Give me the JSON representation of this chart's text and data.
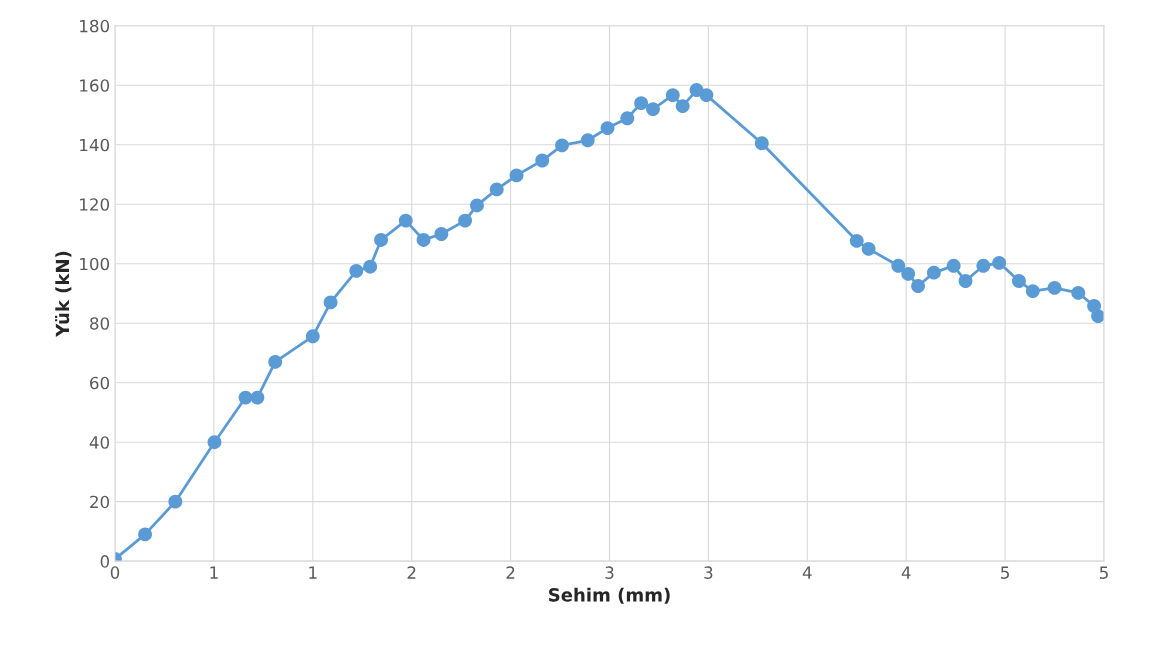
{
  "chart_data": {
    "type": "line",
    "xlabel": "Sehim (mm)",
    "ylabel": "Yük (kN)",
    "x": [
      0,
      0.152,
      0.305,
      0.503,
      0.66,
      0.72,
      0.81,
      1.0,
      1.09,
      1.22,
      1.29,
      1.345,
      1.47,
      1.56,
      1.65,
      1.77,
      1.83,
      1.93,
      2.03,
      2.16,
      2.26,
      2.39,
      2.49,
      2.59,
      2.66,
      2.72,
      2.82,
      2.87,
      2.94,
      2.99,
      3.27,
      3.75,
      3.81,
      3.96,
      4.01,
      4.06,
      4.14,
      4.24,
      4.3,
      4.39,
      4.47,
      4.57,
      4.64,
      4.75,
      4.87,
      4.95,
      4.97
    ],
    "series": [
      {
        "color": "#5b9bd5",
        "values": [
          0.7,
          9,
          20,
          40,
          55,
          55,
          67,
          75.6,
          87,
          97.6,
          99,
          108,
          114.5,
          108,
          110,
          114.5,
          119.6,
          125,
          129.7,
          134.7,
          139.8,
          141.5,
          145.6,
          148.9,
          154,
          152,
          156.7,
          153,
          158.4,
          156.7,
          140.5,
          107.7,
          105,
          99.3,
          96.6,
          92.5,
          97,
          99.3,
          94.2,
          99.3,
          100.3,
          94.2,
          90.8,
          91.9,
          90.2,
          85.8,
          82.4
        ]
      }
    ],
    "xlim": [
      0,
      5
    ],
    "ylim": [
      0,
      180
    ],
    "xticks": [
      0,
      {
        "value": 0.5,
        "label": "1"
      },
      1,
      {
        "value": 1.5,
        "label": "2"
      },
      2,
      {
        "value": 2.5,
        "label": "3"
      },
      3,
      {
        "value": 3.5,
        "label": "4"
      },
      4,
      {
        "value": 4.5,
        "label": "5"
      },
      5
    ],
    "yticks": [
      0,
      20,
      40,
      60,
      80,
      100,
      120,
      140,
      160,
      180
    ],
    "grid": true,
    "marker": "circle",
    "line_style": "solid",
    "legend": false
  }
}
